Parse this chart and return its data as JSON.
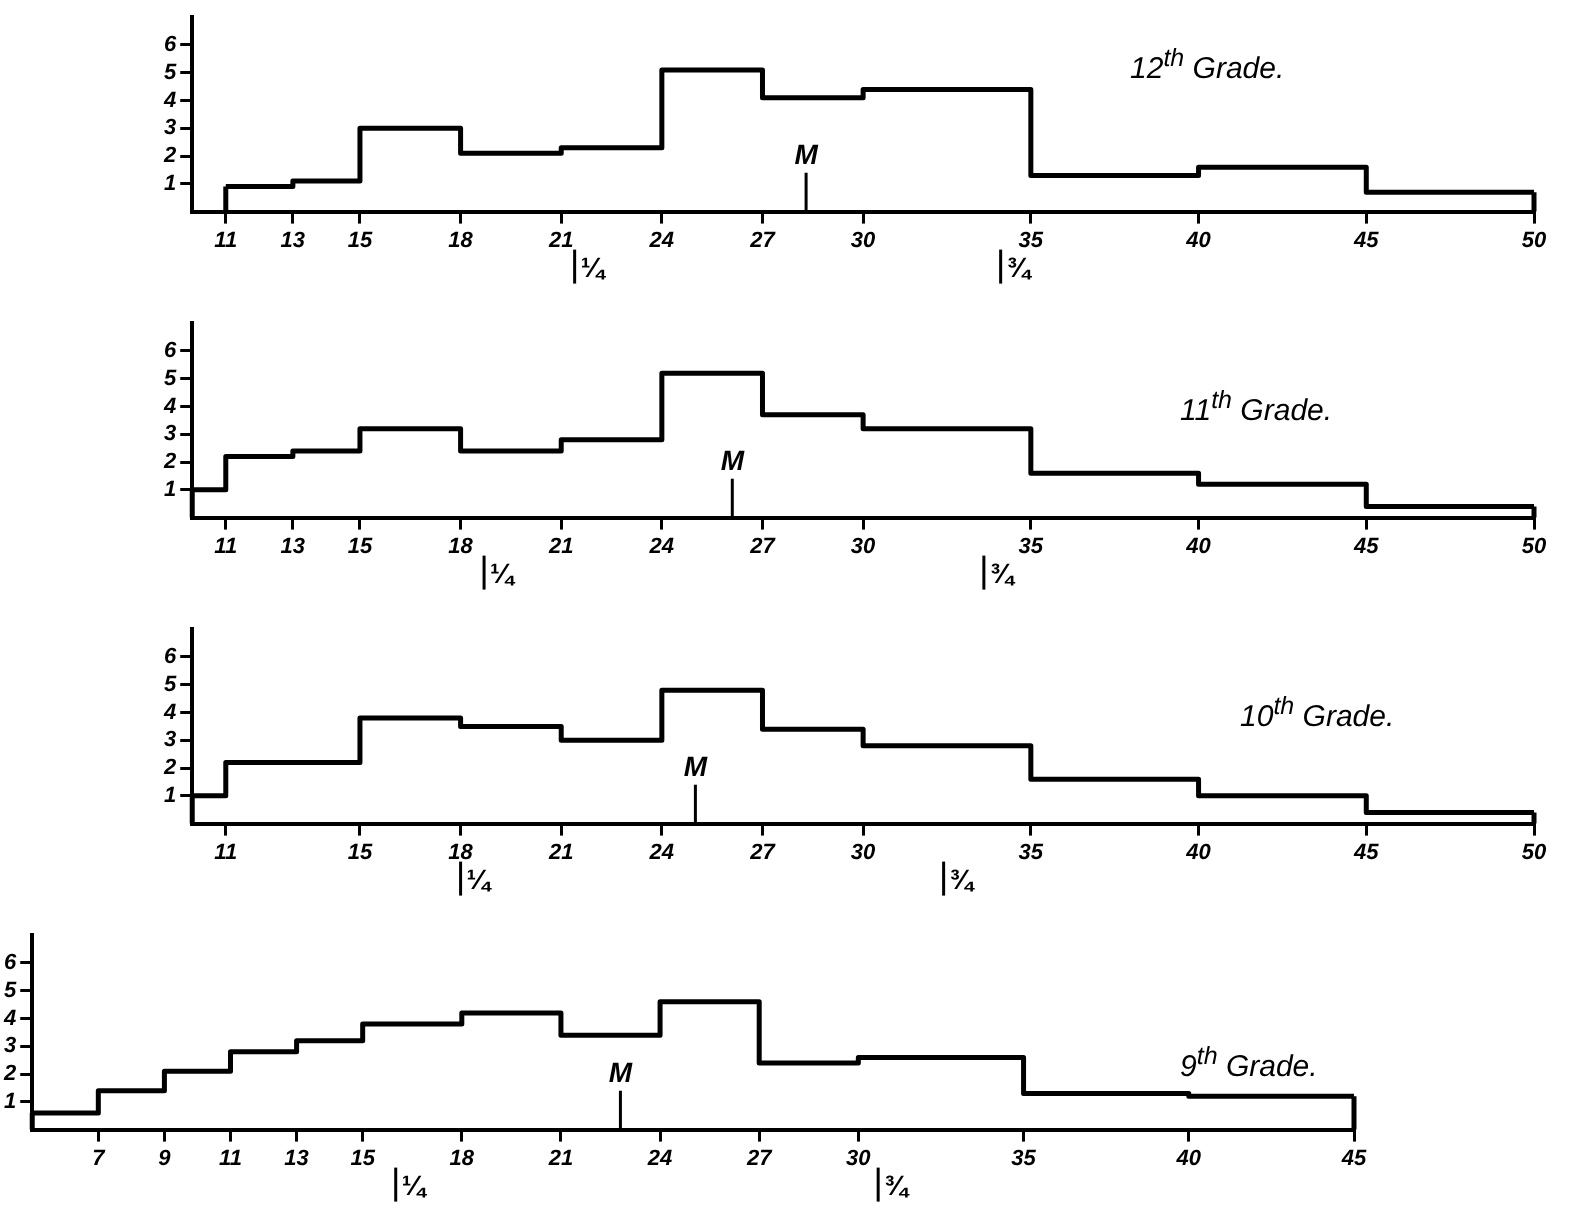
{
  "chart_data": [
    {
      "type": "histogram",
      "title": "12$^{th}$ Grade.",
      "bins": [
        11,
        13,
        15,
        18,
        21,
        24,
        27,
        30,
        35,
        40,
        45,
        50
      ],
      "values": [
        0.9,
        1.1,
        3.0,
        2.1,
        2.3,
        5.1,
        4.1,
        4.4,
        1.3,
        1.6,
        0.7
      ],
      "xlim": [
        10,
        50
      ],
      "xticks": [
        11,
        13,
        15,
        18,
        21,
        24,
        27,
        30,
        35,
        40,
        45,
        50
      ],
      "ylim": [
        0,
        7
      ],
      "yticks": [
        1,
        2,
        3,
        4,
        5,
        6
      ],
      "ref_lines": [
        {
          "axis": "x",
          "value": 21.4,
          "label": "¼"
        },
        {
          "axis": "x",
          "value": 28.3,
          "label": "M"
        },
        {
          "axis": "x",
          "value": 34.1,
          "label": "¾"
        }
      ]
    },
    {
      "type": "histogram",
      "title": "11$^{th}$ Grade.",
      "bins": [
        10,
        11,
        13,
        15,
        18,
        21,
        24,
        27,
        30,
        35,
        40,
        45,
        50
      ],
      "values": [
        1.0,
        2.2,
        2.4,
        3.2,
        2.4,
        2.8,
        5.2,
        3.7,
        3.2,
        1.6,
        1.2,
        0.4
      ],
      "xlim": [
        10,
        50
      ],
      "xticks": [
        11,
        13,
        15,
        18,
        21,
        24,
        27,
        30,
        35,
        40,
        45,
        50
      ],
      "ylim": [
        0,
        7
      ],
      "yticks": [
        1,
        2,
        3,
        4,
        5,
        6
      ],
      "ref_lines": [
        {
          "axis": "x",
          "value": 18.7,
          "label": "¼"
        },
        {
          "axis": "x",
          "value": 26.1,
          "label": "M"
        },
        {
          "axis": "x",
          "value": 33.6,
          "label": "¾"
        }
      ]
    },
    {
      "type": "histogram",
      "title": "10$^{th}$ Grade.",
      "bins": [
        10,
        11,
        15,
        18,
        21,
        24,
        27,
        30,
        35,
        40,
        45,
        50
      ],
      "values": [
        1.0,
        2.2,
        3.8,
        3.5,
        3.0,
        4.8,
        3.4,
        2.8,
        1.6,
        1.0,
        0.4
      ],
      "xlim": [
        10,
        50
      ],
      "xticks": [
        11,
        15,
        18,
        21,
        24,
        27,
        30,
        35,
        40,
        45,
        50
      ],
      "ylim": [
        0,
        7
      ],
      "yticks": [
        1,
        2,
        3,
        4,
        5,
        6
      ],
      "ref_lines": [
        {
          "axis": "x",
          "value": 18,
          "label": "¼"
        },
        {
          "axis": "x",
          "value": 25,
          "label": "M"
        },
        {
          "axis": "x",
          "value": 32.4,
          "label": "¾"
        }
      ]
    },
    {
      "type": "histogram",
      "title": "9$^{th}$ Grade.",
      "bins": [
        5,
        7,
        9,
        11,
        13,
        15,
        18,
        21,
        24,
        27,
        30,
        35,
        40,
        45
      ],
      "values": [
        0.6,
        1.4,
        2.1,
        2.8,
        3.2,
        3.8,
        4.2,
        3.4,
        4.6,
        2.4,
        2.6,
        1.3,
        1.2
      ],
      "xlim": [
        5,
        45
      ],
      "xticks": [
        7,
        9,
        11,
        13,
        15,
        18,
        21,
        24,
        27,
        30,
        35,
        40,
        45
      ],
      "ylim": [
        0,
        7
      ],
      "yticks": [
        1,
        2,
        3,
        4,
        5,
        6
      ],
      "ref_lines": [
        {
          "axis": "x",
          "value": 16,
          "label": "¼"
        },
        {
          "axis": "x",
          "value": 22.8,
          "label": "M"
        },
        {
          "axis": "x",
          "value": 30.6,
          "label": "¾"
        }
      ]
    }
  ]
}
